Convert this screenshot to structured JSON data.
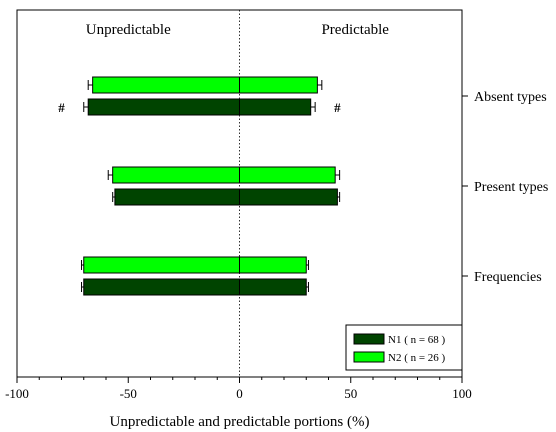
{
  "chart_data": {
    "type": "bar",
    "orientation": "horizontal",
    "xlabel": "Unpredictable and predictable portions (%)",
    "xlim": [
      -100,
      100
    ],
    "xticks": [
      -100,
      -50,
      0,
      50,
      100
    ],
    "categories": [
      "Absent types",
      "Present types",
      "Frequencies"
    ],
    "side_labels": {
      "left": "Unpredictable",
      "right": "Predictable"
    },
    "grid": false,
    "legend_position": "bottom-right",
    "series": [
      {
        "name": "N2 ( n = 26 )",
        "color": "#00ff00",
        "unpredictable": [
          -66,
          -57,
          -70
        ],
        "predictable": [
          35,
          43,
          30
        ],
        "error": [
          2,
          2,
          1
        ]
      },
      {
        "name": "N1 ( n = 68 )",
        "color": "#004400",
        "unpredictable": [
          -68,
          -56,
          -70
        ],
        "predictable": [
          32,
          44,
          30
        ],
        "error": [
          2,
          1,
          1
        ]
      }
    ],
    "annotations": [
      {
        "text": "#",
        "x": -80,
        "category": "Absent types",
        "series": "N1 ( n = 68 )"
      },
      {
        "text": "#",
        "x": 44,
        "category": "Absent types",
        "series": "N1 ( n = 68 )"
      }
    ]
  }
}
